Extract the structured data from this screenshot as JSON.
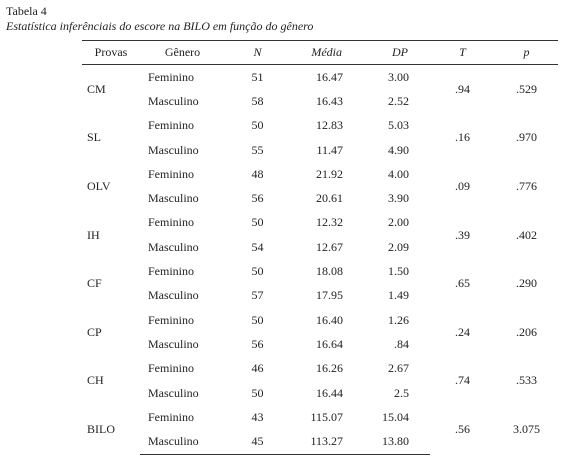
{
  "header": {
    "title": "Tabela 4",
    "subtitle": "Estatística inferênciais do escore na BILO em função do gênero"
  },
  "table": {
    "columns": [
      "Provas",
      "Gênero",
      "N",
      "Média",
      "DP",
      "T",
      "p"
    ],
    "groups": [
      {
        "prova": "CM",
        "rows": [
          [
            "Feminino",
            "51",
            "16.47",
            "3.00"
          ],
          [
            "Masculino",
            "58",
            "16.43",
            "2.52"
          ]
        ],
        "T": ".94",
        "p": ".529"
      },
      {
        "prova": "SL",
        "rows": [
          [
            "Feminino",
            "50",
            "12.83",
            "5.03"
          ],
          [
            "Masculino",
            "55",
            "11.47",
            "4.90"
          ]
        ],
        "T": ".16",
        "p": ".970"
      },
      {
        "prova": "OLV",
        "rows": [
          [
            "Feminino",
            "48",
            "21.92",
            "4.00"
          ],
          [
            "Masculino",
            "56",
            "20.61",
            "3.90"
          ]
        ],
        "T": ".09",
        "p": ".776"
      },
      {
        "prova": "IH",
        "rows": [
          [
            "Feminino",
            "50",
            "12.32",
            "2.00"
          ],
          [
            "Masculino",
            "54",
            "12.67",
            "2.09"
          ]
        ],
        "T": ".39",
        "p": ".402"
      },
      {
        "prova": "CF",
        "rows": [
          [
            "Feminino",
            "50",
            "18.08",
            "1.50"
          ],
          [
            "Masculino",
            "57",
            "17.95",
            "1.49"
          ]
        ],
        "T": ".65",
        "p": ".290"
      },
      {
        "prova": "CP",
        "rows": [
          [
            "Feminino",
            "50",
            "16.40",
            "1.26"
          ],
          [
            "Masculino",
            "56",
            "16.64",
            ".84"
          ]
        ],
        "T": ".24",
        "p": ".206"
      },
      {
        "prova": "CH",
        "rows": [
          [
            "Feminino",
            "46",
            "16.26",
            "2.67"
          ],
          [
            "Masculino",
            "50",
            "16.44",
            "2.5"
          ]
        ],
        "T": ".74",
        "p": ".533"
      },
      {
        "prova": "BILO",
        "rows": [
          [
            "Feminino",
            "43",
            "115.07",
            "15.04"
          ],
          [
            "Masculino",
            "45",
            "113.27",
            "13.80"
          ]
        ],
        "T": ".56",
        "p": "3.075"
      }
    ]
  }
}
